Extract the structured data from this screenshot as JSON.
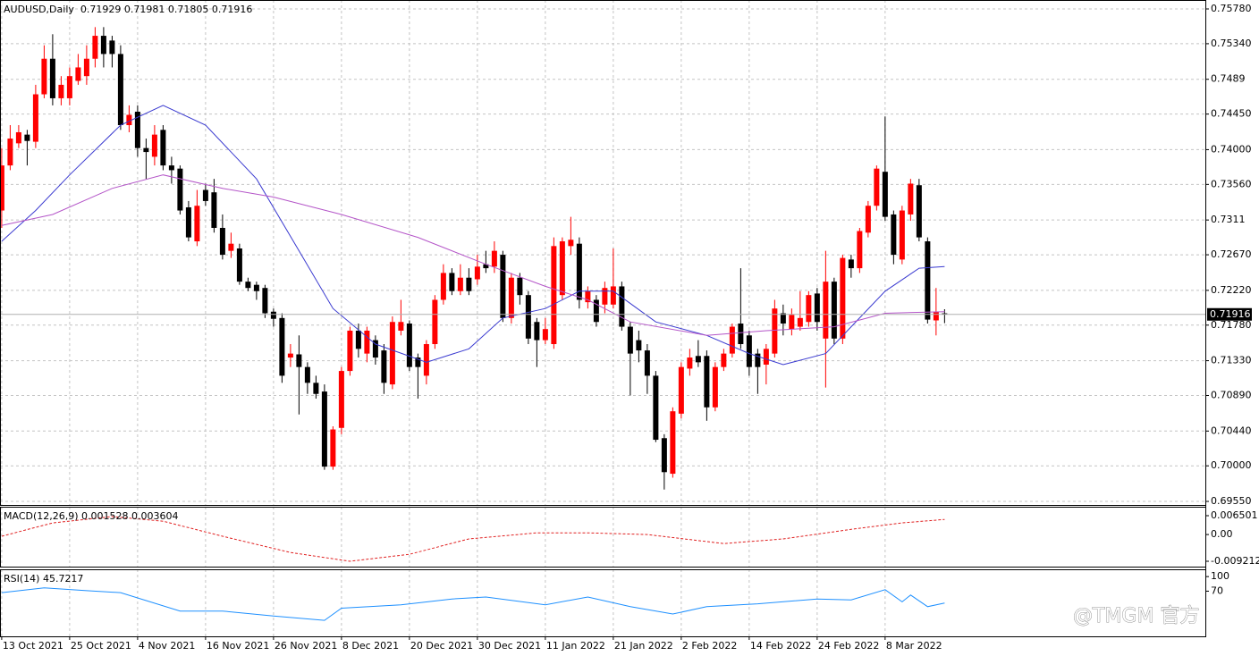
{
  "chart_data": [
    {
      "type": "candlestick",
      "title": "AUDUSD,Daily  0.71929 0.71981 0.71805 0.71916",
      "up_color": "#ff0000",
      "down_color": "#000000",
      "grid": true,
      "xlim": [
        -0.2,
        141.7
      ],
      "ylim": [
        0.69505,
        0.75893
      ],
      "xticks": [
        {
          "value": 0,
          "label": "13 Oct 2021"
        },
        {
          "value": 8,
          "label": "25 Oct 2021"
        },
        {
          "value": 16,
          "label": "4 Nov 2021"
        },
        {
          "value": 24,
          "label": "16 Nov 2021"
        },
        {
          "value": 32,
          "label": "26 Nov 2021"
        },
        {
          "value": 40,
          "label": "8 Dec 2021"
        },
        {
          "value": 48,
          "label": "20 Dec 2021"
        },
        {
          "value": 56,
          "label": "30 Dec 2021"
        },
        {
          "value": 64,
          "label": "11 Jan 2022"
        },
        {
          "value": 72,
          "label": "21 Jan 2022"
        },
        {
          "value": 80,
          "label": "2 Feb 2022"
        },
        {
          "value": 88,
          "label": "14 Feb 2022"
        },
        {
          "value": 96,
          "label": "24 Feb 2022"
        },
        {
          "value": 104,
          "label": "8 Mar 2022"
        }
      ],
      "yticks": [
        {
          "value": 0.7578,
          "label": "0.75780"
        },
        {
          "value": 0.7534,
          "label": "0.75340"
        },
        0.7489,
        {
          "value": 0.7445,
          "label": "0.74450"
        },
        {
          "value": 0.74,
          "label": "0.74000"
        },
        {
          "value": 0.7356,
          "label": "0.73560"
        },
        0.7311,
        {
          "value": 0.7267,
          "label": "0.72670"
        },
        {
          "value": 0.7222,
          "label": "0.72220"
        },
        {
          "value": 0.7178,
          "label": "0.71780"
        },
        {
          "value": 0.7133,
          "label": "0.71330"
        },
        {
          "value": 0.7089,
          "label": "0.70890"
        },
        {
          "value": 0.7044,
          "label": "0.70440"
        },
        {
          "value": 0.7,
          "label": "0.70000"
        },
        {
          "value": 0.6955,
          "label": "0.69550"
        }
      ],
      "last_price": {
        "value": 0.71916,
        "label": "0.71916"
      },
      "open": [
        0.7323,
        0.738,
        0.7408,
        0.7419,
        0.741,
        0.747,
        0.7515,
        0.7465,
        0.7465,
        0.7487,
        0.7493,
        0.7515,
        0.7544,
        0.7538,
        0.7521,
        0.7431,
        0.7448,
        0.7402,
        0.7391,
        0.7425,
        0.738,
        0.7376,
        0.7327,
        0.7284,
        0.7349,
        0.7346,
        0.7301,
        0.7272,
        0.7275,
        0.7233,
        0.7229,
        0.7225,
        0.7195,
        0.7187,
        0.7137,
        0.7141,
        0.7125,
        0.7105,
        0.7094,
        0.6999,
        0.7048,
        0.712,
        0.7171,
        0.7142,
        0.7159,
        0.7146,
        0.7103,
        0.7171,
        0.718,
        0.7137,
        0.7114,
        0.7154,
        0.721,
        0.7244,
        0.7221,
        0.7238,
        0.7236,
        0.7255,
        0.7252,
        0.7267,
        0.7187,
        0.7238,
        0.7216,
        0.7182,
        0.7159,
        0.7154,
        0.7216,
        0.7278,
        0.7281,
        0.7207,
        0.721,
        0.7204,
        0.7204,
        0.7227,
        0.7176,
        0.7159,
        0.7146,
        0.7114,
        0.7035,
        0.699,
        0.7066,
        0.7123,
        0.7139,
        0.7139,
        0.7074,
        0.7125,
        0.7142,
        0.718,
        0.7165,
        0.7142,
        0.7128,
        0.7142,
        0.7193,
        0.7173,
        0.7176,
        0.7182,
        0.7218,
        0.7161,
        0.7233,
        0.7161,
        0.7261,
        0.725,
        0.7295,
        0.7329,
        0.7372,
        0.7318,
        0.7261,
        0.7318,
        0.7355,
        0.7284,
        0.7184,
        0.71929
      ],
      "high": [
        0.7402,
        0.7431,
        0.7431,
        0.7425,
        0.7482,
        0.7532,
        0.7546,
        0.7493,
        0.7504,
        0.7521,
        0.7532,
        0.7555,
        0.7555,
        0.7544,
        0.7532,
        0.7456,
        0.7456,
        0.7414,
        0.7431,
        0.7431,
        0.7391,
        0.738,
        0.7335,
        0.7349,
        0.7357,
        0.7363,
        0.7318,
        0.7295,
        0.7281,
        0.7238,
        0.7233,
        0.7229,
        0.7199,
        0.7193,
        0.7154,
        0.7165,
        0.7131,
        0.7114,
        0.7103,
        0.705,
        0.7125,
        0.7176,
        0.718,
        0.7176,
        0.7165,
        0.7154,
        0.7189,
        0.721,
        0.7184,
        0.7142,
        0.7159,
        0.7216,
        0.7255,
        0.725,
        0.7255,
        0.725,
        0.7267,
        0.7272,
        0.7284,
        0.7272,
        0.7244,
        0.7244,
        0.7221,
        0.7187,
        0.7187,
        0.7289,
        0.7289,
        0.7315,
        0.7289,
        0.7227,
        0.7216,
        0.7233,
        0.7275,
        0.7233,
        0.7182,
        0.7171,
        0.7154,
        0.712,
        0.704,
        0.7074,
        0.7131,
        0.7148,
        0.7159,
        0.7146,
        0.7131,
        0.7148,
        0.718,
        0.725,
        0.7171,
        0.7148,
        0.7154,
        0.721,
        0.7204,
        0.7199,
        0.7221,
        0.7221,
        0.7225,
        0.7272,
        0.7238,
        0.7267,
        0.7267,
        0.7301,
        0.7335,
        0.738,
        0.7442,
        0.7323,
        0.7329,
        0.7363,
        0.7363,
        0.7289,
        0.7225,
        0.71981
      ],
      "low": [
        0.7301,
        0.7374,
        0.7402,
        0.738,
        0.7402,
        0.7465,
        0.7456,
        0.7456,
        0.7456,
        0.7482,
        0.7482,
        0.7504,
        0.7504,
        0.7504,
        0.7425,
        0.7422,
        0.7391,
        0.7363,
        0.738,
        0.7374,
        0.7357,
        0.7318,
        0.7284,
        0.7278,
        0.7329,
        0.7295,
        0.7261,
        0.7263,
        0.7229,
        0.7221,
        0.721,
        0.7187,
        0.7176,
        0.7105,
        0.7125,
        0.7065,
        0.7091,
        0.7085,
        0.6995,
        0.6995,
        0.704,
        0.7114,
        0.7137,
        0.7131,
        0.7128,
        0.7091,
        0.7097,
        0.7165,
        0.712,
        0.7085,
        0.7103,
        0.7148,
        0.7204,
        0.7216,
        0.7216,
        0.7216,
        0.7229,
        0.7244,
        0.7244,
        0.7182,
        0.718,
        0.7204,
        0.7154,
        0.7125,
        0.7154,
        0.7148,
        0.721,
        0.7267,
        0.7199,
        0.7199,
        0.7176,
        0.7193,
        0.7199,
        0.7171,
        0.7089,
        0.7131,
        0.7091,
        0.703,
        0.697,
        0.6985,
        0.706,
        0.7114,
        0.7125,
        0.7057,
        0.7069,
        0.712,
        0.7137,
        0.7148,
        0.7114,
        0.7091,
        0.7103,
        0.7137,
        0.7165,
        0.7165,
        0.7171,
        0.7176,
        0.7171,
        0.7099,
        0.7154,
        0.7154,
        0.7238,
        0.7244,
        0.7289,
        0.7323,
        0.731,
        0.7255,
        0.7255,
        0.731,
        0.7284,
        0.718,
        0.7165,
        0.71805
      ],
      "close": [
        0.738,
        0.7414,
        0.7422,
        0.7411,
        0.747,
        0.7515,
        0.7465,
        0.7482,
        0.7493,
        0.7504,
        0.7515,
        0.7544,
        0.7521,
        0.7521,
        0.7431,
        0.7444,
        0.7402,
        0.7397,
        0.7419,
        0.738,
        0.7374,
        0.7323,
        0.7289,
        0.7329,
        0.7335,
        0.7301,
        0.7267,
        0.7281,
        0.7233,
        0.7225,
        0.7221,
        0.7193,
        0.7186,
        0.7114,
        0.7142,
        0.7125,
        0.7105,
        0.7091,
        0.6999,
        0.7046,
        0.712,
        0.7171,
        0.7148,
        0.7171,
        0.7137,
        0.7105,
        0.7182,
        0.7182,
        0.7125,
        0.7125,
        0.7154,
        0.721,
        0.7244,
        0.7221,
        0.7238,
        0.7221,
        0.7252,
        0.725,
        0.7272,
        0.7187,
        0.7238,
        0.7216,
        0.7161,
        0.7159,
        0.7173,
        0.7278,
        0.7284,
        0.7286,
        0.721,
        0.7221,
        0.7182,
        0.7225,
        0.7227,
        0.7176,
        0.7142,
        0.7146,
        0.7114,
        0.7033,
        0.6992,
        0.7069,
        0.7125,
        0.7137,
        0.7131,
        0.7074,
        0.7125,
        0.7142,
        0.7176,
        0.7154,
        0.7125,
        0.7125,
        0.7148,
        0.7199,
        0.718,
        0.7191,
        0.7187,
        0.7216,
        0.7182,
        0.7233,
        0.7161,
        0.7263,
        0.725,
        0.7297,
        0.7329,
        0.7376,
        0.7315,
        0.7267,
        0.7323,
        0.7357,
        0.7289,
        0.7185,
        0.7195,
        0.71916
      ],
      "series": [
        {
          "color": "#3a3ad0",
          "x": [
            0,
            4,
            8,
            14,
            19,
            24,
            30,
            35,
            39,
            44,
            50,
            55,
            59,
            64,
            68,
            72,
            77,
            83,
            88,
            92,
            97,
            100,
            104,
            108,
            111
          ],
          "values": [
            0.7284,
            0.7323,
            0.7368,
            0.7431,
            0.7456,
            0.7431,
            0.7363,
            0.7272,
            0.7199,
            0.7154,
            0.7131,
            0.7148,
            0.7187,
            0.7199,
            0.7221,
            0.7221,
            0.7182,
            0.7165,
            0.7142,
            0.7128,
            0.7142,
            0.7176,
            0.7221,
            0.725,
            0.7252
          ]
        },
        {
          "color": "#b455c8",
          "x": [
            0,
            6,
            13,
            19,
            26,
            32,
            40,
            49,
            57,
            64,
            69,
            74,
            83,
            90,
            98,
            104,
            111
          ],
          "values": [
            0.7304,
            0.7318,
            0.7351,
            0.7368,
            0.7351,
            0.734,
            0.7318,
            0.7289,
            0.7255,
            0.7227,
            0.721,
            0.7182,
            0.7165,
            0.7171,
            0.7176,
            0.7193,
            0.7195
          ]
        }
      ]
    },
    {
      "type": "line",
      "title": "MACD(12,26,9) 0.001528 0.003604",
      "ylim": [
        -0.01106,
        0.00958
      ],
      "yticks": [
        0.006501,
        {
          "value": 0,
          "label": "0.00"
        },
        -0.009212
      ],
      "dashed": true,
      "series": [
        {
          "color": "#e02020",
          "x": [
            0,
            6,
            13,
            19,
            26,
            34,
            41,
            48,
            55,
            63,
            69,
            76,
            85,
            92,
            100,
            106,
            111
          ],
          "values": [
            -0.0006,
            0.004,
            0.0062,
            0.0046,
            -0.0006,
            -0.0062,
            -0.0092,
            -0.0068,
            -0.0015,
            0.0006,
            0.0006,
            0,
            -0.0031,
            -0.0015,
            0.0018,
            0.004,
            0.0052
          ]
        }
      ]
    },
    {
      "type": "line",
      "title": "RSI(14) 45.7217",
      "ylim": [
        -23,
        115
      ],
      "yticks": [
        100,
        70
      ],
      "series": [
        {
          "color": "#1e90ff",
          "x": [
            0,
            5,
            10,
            14,
            21,
            26,
            32,
            38,
            40,
            47,
            53,
            57,
            64,
            69,
            74,
            79,
            83,
            89,
            96,
            100,
            104,
            106,
            107,
            109,
            111
          ],
          "values": [
            67,
            77,
            71,
            67,
            29,
            29,
            19,
            10,
            35,
            42,
            54,
            58,
            42,
            58,
            38,
            23,
            38,
            44,
            54,
            52,
            73,
            48,
            62,
            38,
            45.7217
          ]
        }
      ]
    }
  ],
  "watermark": "@TMGM 官方"
}
